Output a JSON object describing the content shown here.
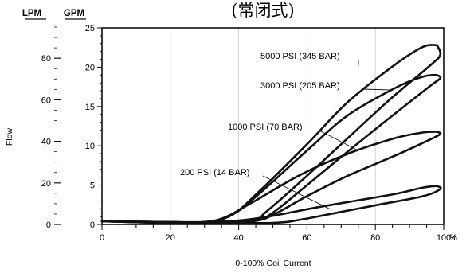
{
  "chart_data": {
    "type": "line",
    "title": "(常闭式)",
    "xlabel": "0-100% Coil Current",
    "x_unit": "%",
    "ylabel": "Flow",
    "y_units": {
      "left_outer": "LPM",
      "left_inner": "GPM"
    },
    "xlim": [
      0,
      100
    ],
    "ylim_gpm": [
      0,
      25
    ],
    "ylim_lpm": [
      0,
      95
    ],
    "x_ticks": [
      "0",
      "20",
      "40",
      "60",
      "80",
      "100"
    ],
    "gpm_ticks": [
      "0",
      "5",
      "10",
      "15",
      "20",
      "25"
    ],
    "lpm_ticks": [
      "0",
      "20",
      "40",
      "60",
      "80"
    ],
    "grid": {
      "vertical": true,
      "horizontal": false
    },
    "series": [
      {
        "name": "5000 PSI (345 BAR)",
        "rising": [
          [
            0,
            0.4
          ],
          [
            20,
            0.3
          ],
          [
            30,
            0.3
          ],
          [
            38,
            1.2
          ],
          [
            46,
            4.2
          ],
          [
            60,
            10.2
          ],
          [
            72,
            15.6
          ],
          [
            86,
            20.4
          ],
          [
            94,
            22.6
          ],
          [
            98,
            22.8
          ]
        ],
        "falling": [
          [
            98,
            22.8
          ],
          [
            99,
            21.6
          ],
          [
            96,
            20.2
          ],
          [
            84,
            15.8
          ],
          [
            70,
            10.2
          ],
          [
            58,
            5.4
          ],
          [
            48,
            1.6
          ],
          [
            44,
            0.5
          ],
          [
            30,
            0.3
          ],
          [
            20,
            0.2
          ],
          [
            0,
            0.4
          ]
        ],
        "label_anchor": [
          75,
          20.1
        ]
      },
      {
        "name": "3000 PSI (205 BAR)",
        "rising": [
          [
            0,
            0.4
          ],
          [
            20,
            0.3
          ],
          [
            30,
            0.3
          ],
          [
            38,
            1.2
          ],
          [
            46,
            3.9
          ],
          [
            60,
            9.4
          ],
          [
            72,
            13.9
          ],
          [
            86,
            17.4
          ],
          [
            94,
            18.8
          ],
          [
            98,
            19.0
          ]
        ],
        "falling": [
          [
            98,
            19.0
          ],
          [
            99,
            18.6
          ],
          [
            96,
            17.6
          ],
          [
            84,
            13.5
          ],
          [
            72,
            9.3
          ],
          [
            60,
            5.0
          ],
          [
            50,
            1.5
          ],
          [
            44,
            0.4
          ],
          [
            30,
            0.2
          ],
          [
            20,
            0.2
          ],
          [
            0,
            0.4
          ]
        ],
        "label_anchor": [
          85,
          17.1
        ]
      },
      {
        "name": "1000 PSI (70 BAR)",
        "rising": [
          [
            0,
            0.4
          ],
          [
            20,
            0.3
          ],
          [
            30,
            0.3
          ],
          [
            36,
            0.9
          ],
          [
            44,
            2.8
          ],
          [
            58,
            6.3
          ],
          [
            72,
            9.0
          ],
          [
            86,
            11.0
          ],
          [
            94,
            11.7
          ],
          [
            98,
            11.8
          ]
        ],
        "falling": [
          [
            98,
            11.8
          ],
          [
            99,
            11.5
          ],
          [
            96,
            10.8
          ],
          [
            86,
            8.8
          ],
          [
            72,
            6.2
          ],
          [
            60,
            3.6
          ],
          [
            50,
            1.2
          ],
          [
            44,
            0.4
          ],
          [
            30,
            0.2
          ],
          [
            20,
            0.2
          ],
          [
            0,
            0.4
          ]
        ],
        "label_anchor": [
          75,
          9.4
        ]
      },
      {
        "name": "200 PSI (14 BAR)",
        "rising": [
          [
            0,
            0.4
          ],
          [
            20,
            0.3
          ],
          [
            30,
            0.3
          ],
          [
            40,
            0.5
          ],
          [
            50,
            1.1
          ],
          [
            62,
            2.1
          ],
          [
            74,
            3.0
          ],
          [
            86,
            3.9
          ],
          [
            94,
            4.7
          ],
          [
            98,
            4.9
          ]
        ],
        "falling": [
          [
            98,
            4.9
          ],
          [
            99,
            4.5
          ],
          [
            94,
            3.6
          ],
          [
            82,
            2.6
          ],
          [
            70,
            1.6
          ],
          [
            58,
            0.6
          ],
          [
            50,
            0.2
          ],
          [
            30,
            0.2
          ],
          [
            20,
            0.2
          ],
          [
            0,
            0.4
          ]
        ],
        "label_anchor": [
          67,
          1.9
        ]
      }
    ]
  }
}
